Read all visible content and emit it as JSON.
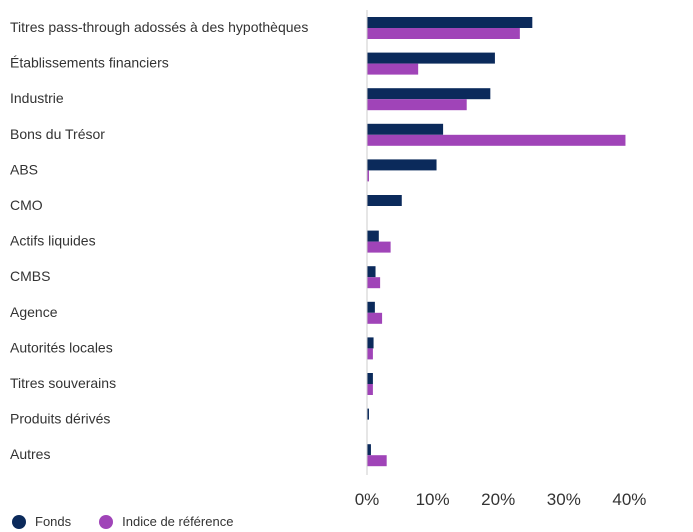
{
  "chart_data": {
    "type": "bar",
    "orientation": "horizontal",
    "categories": [
      "Titres pass-through adossés à des hypothèques",
      "Établissements financiers",
      "Industrie",
      "Bons du Trésor",
      "ABS",
      "CMO",
      "Actifs liquides",
      "CMBS",
      "Agence",
      "Autorités locales",
      "Titres souverains",
      "Produits dérivés",
      "Autres"
    ],
    "series": [
      {
        "name": "Fonds",
        "color": "#0b2a5b",
        "values": [
          25.2,
          19.5,
          18.8,
          11.6,
          10.6,
          5.3,
          1.8,
          1.3,
          1.2,
          1.0,
          0.9,
          0.3,
          0.6
        ]
      },
      {
        "name": "Indice de référence",
        "color": "#a044b8",
        "values": [
          23.3,
          7.8,
          15.2,
          39.4,
          0.3,
          0.0,
          3.6,
          2.0,
          2.3,
          0.9,
          0.9,
          0.0,
          3.0
        ]
      }
    ],
    "xticks": [
      "0%",
      "10%",
      "20%",
      "30%",
      "40%"
    ],
    "xlim": [
      0,
      49
    ],
    "grid": false,
    "legend_position": "bottom-left"
  }
}
